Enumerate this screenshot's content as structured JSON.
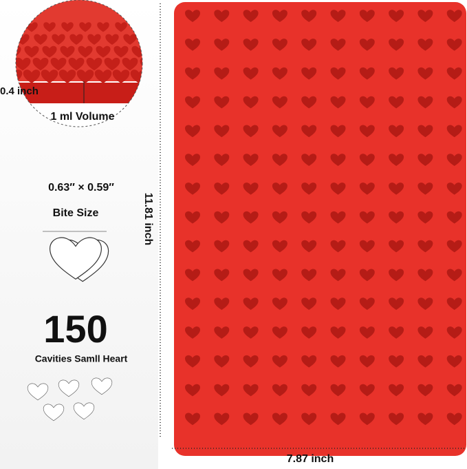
{
  "inset": {
    "height_label": "0.4 inch",
    "volume_label": "1 ml Volume"
  },
  "size": {
    "dimensions": "0.63″ × 0.59″",
    "label": "Bite Size"
  },
  "count": {
    "number": "150",
    "label": "Cavities Samll Heart"
  },
  "tray": {
    "height_label": "11.81 inch",
    "width_label": "7.87 inch"
  }
}
